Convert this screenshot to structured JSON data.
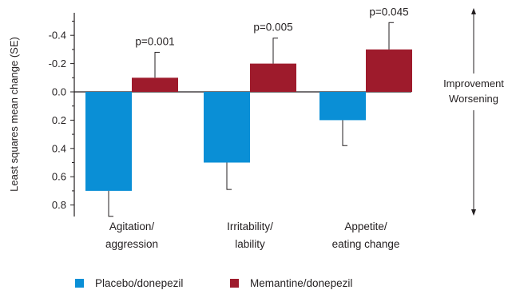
{
  "chart_data": {
    "type": "bar",
    "ylabel": "Least squares mean change (SE)",
    "yaxis_inverted": true,
    "ylim": [
      -0.5,
      0.9
    ],
    "yticks": [
      -0.4,
      -0.2,
      0.0,
      0.2,
      0.4,
      0.6,
      0.8
    ],
    "ytick_labels": [
      "-0.4",
      "-0.2",
      "0.0",
      "0.2",
      "0.4",
      "0.6",
      "0.8"
    ],
    "categories": [
      {
        "line1": "Agitation/",
        "line2": "aggression"
      },
      {
        "line1": "Irritability/",
        "line2": "lability"
      },
      {
        "line1": "Appetite/",
        "line2": "eating change"
      }
    ],
    "series": [
      {
        "name": "Placebo/donepezil",
        "color": "#0a8fd6",
        "values": [
          0.7,
          0.5,
          0.2
        ],
        "errors": [
          0.18,
          0.19,
          0.18
        ]
      },
      {
        "name": "Memantine/donepezil",
        "color": "#9e1b2c",
        "values": [
          -0.1,
          -0.2,
          -0.3
        ],
        "errors": [
          0.18,
          0.18,
          0.19
        ]
      }
    ],
    "annotations": [
      "p=0.001",
      "p=0.005",
      "p=0.045"
    ],
    "direction_labels": {
      "up": "Improvement",
      "down": "Worsening"
    },
    "grid": false,
    "legend_position": "bottom-left"
  }
}
